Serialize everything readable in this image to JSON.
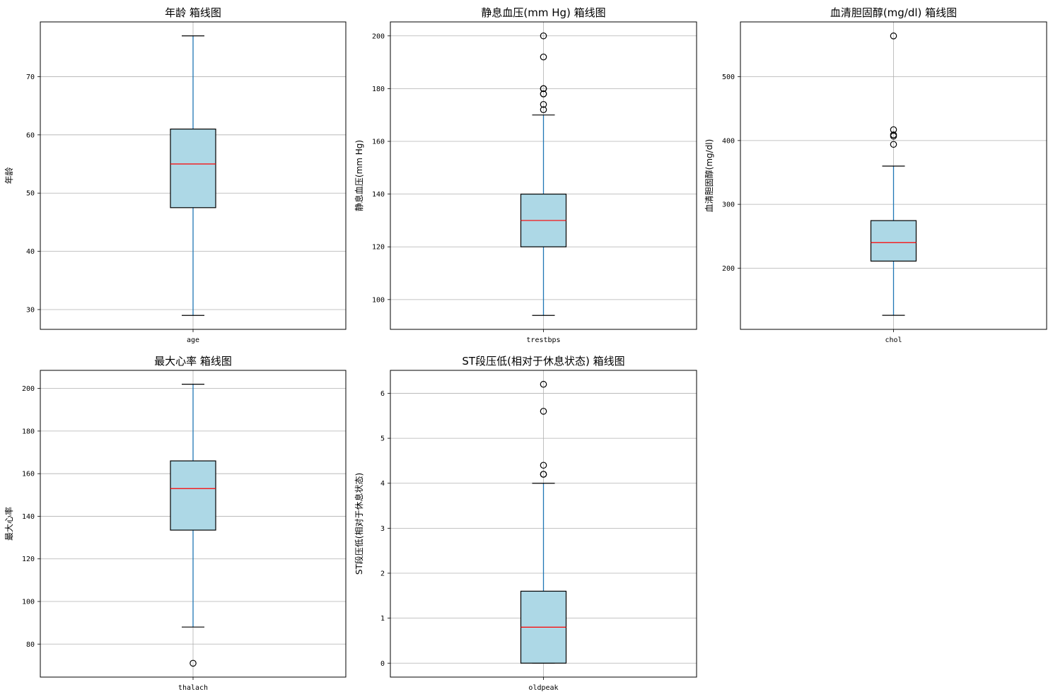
{
  "chart_data": [
    {
      "type": "box",
      "title": "年龄 箱线图",
      "ylabel": "年龄",
      "category": "age",
      "ylim": [
        26.6,
        79.4
      ],
      "yticks": [
        30,
        40,
        50,
        60,
        70
      ],
      "whisker_low": 29,
      "q1": 47.5,
      "median": 55,
      "q3": 61,
      "whisker_high": 77,
      "outliers": [],
      "grid": true,
      "box_color": "#add8e6",
      "median_color": "#ff0000",
      "whisker_color": "#1f77b4"
    },
    {
      "type": "box",
      "title": "静息血压(mm Hg) 箱线图",
      "ylabel": "静息血压(mm Hg)",
      "category": "trestbps",
      "ylim": [
        88.7,
        205.3
      ],
      "yticks": [
        100,
        120,
        140,
        160,
        180,
        200
      ],
      "whisker_low": 94,
      "q1": 120,
      "median": 130,
      "q3": 140,
      "whisker_high": 170,
      "outliers": [
        172,
        174,
        178,
        178,
        180,
        180,
        192,
        200
      ],
      "grid": true,
      "box_color": "#add8e6",
      "median_color": "#ff0000",
      "whisker_color": "#1f77b4"
    },
    {
      "type": "box",
      "title": "血清胆固醇(mg/dl) 箱线图",
      "ylabel": "血清胆固醇(mg/dl)",
      "category": "chol",
      "ylim": [
        104,
        586
      ],
      "yticks": [
        200,
        300,
        400,
        500
      ],
      "whisker_low": 126,
      "q1": 211,
      "median": 240,
      "q3": 274.5,
      "whisker_high": 360,
      "outliers": [
        394,
        407,
        409,
        417,
        564
      ],
      "grid": true,
      "box_color": "#add8e6",
      "median_color": "#ff0000",
      "whisker_color": "#1f77b4"
    },
    {
      "type": "box",
      "title": "最大心率 箱线图",
      "ylabel": "最大心率",
      "category": "thalach",
      "ylim": [
        64.5,
        208.5
      ],
      "yticks": [
        80,
        100,
        120,
        140,
        160,
        180,
        200
      ],
      "whisker_low": 88,
      "q1": 133.5,
      "median": 153,
      "q3": 166,
      "whisker_high": 202,
      "outliers": [
        71
      ],
      "grid": true,
      "box_color": "#add8e6",
      "median_color": "#ff0000",
      "whisker_color": "#1f77b4"
    },
    {
      "type": "box",
      "title": "ST段压低(相对于休息状态) 箱线图",
      "ylabel": "ST段压低(相对于休息状态)",
      "category": "oldpeak",
      "ylim": [
        -0.31,
        6.51
      ],
      "yticks": [
        0,
        1,
        2,
        3,
        4,
        5,
        6
      ],
      "whisker_low": 0,
      "q1": 0,
      "median": 0.8,
      "q3": 1.6,
      "whisker_high": 4,
      "outliers": [
        4.2,
        4.2,
        4.4,
        5.6,
        6.2
      ],
      "grid": true,
      "box_color": "#add8e6",
      "median_color": "#ff0000",
      "whisker_color": "#1f77b4"
    }
  ]
}
